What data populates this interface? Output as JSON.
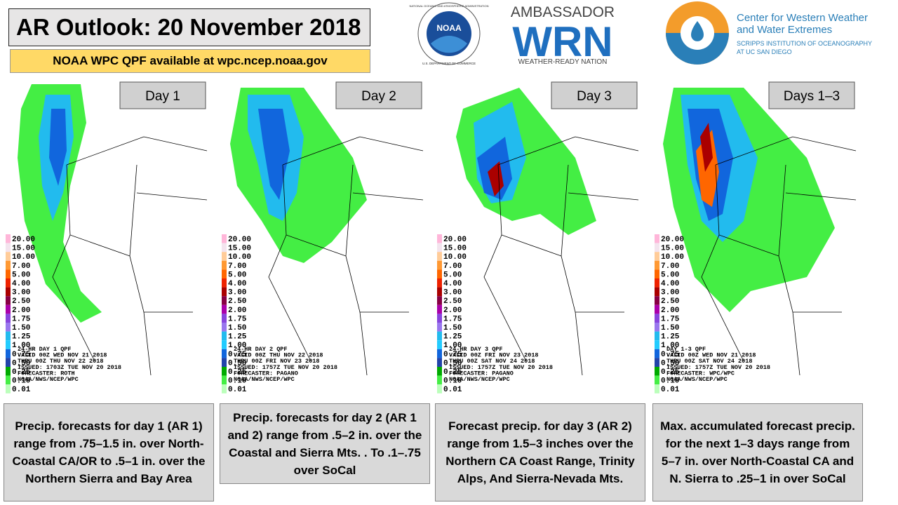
{
  "header": {
    "title": "AR Outlook: 20 November 2018",
    "subtitle": "NOAA WPC QPF available at wpc.ncep.noaa.gov"
  },
  "logos": {
    "noaa": {
      "mark": "NOAA",
      "ring_top": "NATIONAL OCEANIC AND ATMOSPHERIC ADMINISTRATION",
      "ring_bottom": "U.S. DEPARTMENT OF COMMERCE"
    },
    "wrn": {
      "top": "AMBASSADOR",
      "mark": "WRN",
      "bottom": "WEATHER-READY NATION"
    },
    "cw3e": {
      "line1": "Center for Western Weather",
      "line2": "and Water Extremes",
      "line3": "SCRIPPS INSTITUTION OF OCEANOGRAPHY",
      "line4": "AT UC SAN DIEGO"
    }
  },
  "legend": {
    "labels": [
      "20.00",
      "15.00",
      "10.00",
      "7.00",
      "5.00",
      "4.00",
      "3.00",
      "2.50",
      "2.00",
      "1.75",
      "1.50",
      "1.25",
      "1.00",
      "0.75",
      "0.50",
      "0.25",
      "0.10",
      "0.01"
    ],
    "colors": [
      "#ffb6d9",
      "#f3e4ee",
      "#ffcc99",
      "#ff9933",
      "#ff6600",
      "#ee2200",
      "#aa0000",
      "#880044",
      "#aa00aa",
      "#8844dd",
      "#9977ee",
      "#22bbee",
      "#22ccff",
      "#1166dd",
      "#2244aa",
      "#00aa00",
      "#44ee44",
      "#bbffbb"
    ]
  },
  "panels": [
    {
      "label": "Day 1",
      "info": [
        "24-HR DAY 1 QPF",
        "VALID 00Z WED NOV 21 2018",
        "THRU 00Z THU NOV 22 2018",
        "ISSUED: 1703Z TUE NOV 20 2018",
        "FORECASTER: ROTH",
        "NOAA/NWS/NCEP/WPC"
      ],
      "caption": "Precip. forecasts for day 1 (AR 1) range from .75–1.5 in. over North-Coastal CA/OR to .5–1 in. over the Northern Sierra and Bay Area"
    },
    {
      "label": "Day 2",
      "info": [
        "24-HR DAY 2 QPF",
        "VALID 00Z THU NOV 22 2018",
        "THRU 00Z FRI NOV 23 2018",
        "ISSUED: 1757Z TUE NOV 20 2018",
        "FORECASTER: PAGANO",
        "NOAA/NWS/NCEP/WPC"
      ],
      "caption": "Precip. forecasts for day 2 (AR 1 and 2) range from .5–2 in. over the Coastal and Sierra Mts. . To .1–.75 over SoCal"
    },
    {
      "label": "Day 3",
      "info": [
        "24-HR DAY 3 QPF",
        "VALID 00Z FRI NOV 23 2018",
        "THRU 00Z SAT NOV 24 2018",
        "ISSUED: 1757Z TUE NOV 20 2018",
        "FORECASTER: PAGANO",
        "NOAA/NWS/NCEP/WPC"
      ],
      "caption": "Forecast precip. for day 3 (AR 2) range from 1.5–3 inches over the Northern CA Coast Range, Trinity Alps, And Sierra-Nevada Mts."
    },
    {
      "label": "Days 1–3",
      "info": [
        "DAY 1-3 QPF",
        "VALID 00Z WED NOV 21 2018",
        "THRU 00Z SAT NOV 24 2018",
        "ISSUED: 1757Z TUE NOV 20 2018",
        "FORECASTER: WPC/WPC",
        "NOAA/NWS/NCEP/WPC"
      ],
      "caption": "Max. accumulated forecast precip. for the next 1–3 days range from 5–7 in. over North-Coastal CA and N. Sierra to .25–1 in over SoCal"
    }
  ]
}
